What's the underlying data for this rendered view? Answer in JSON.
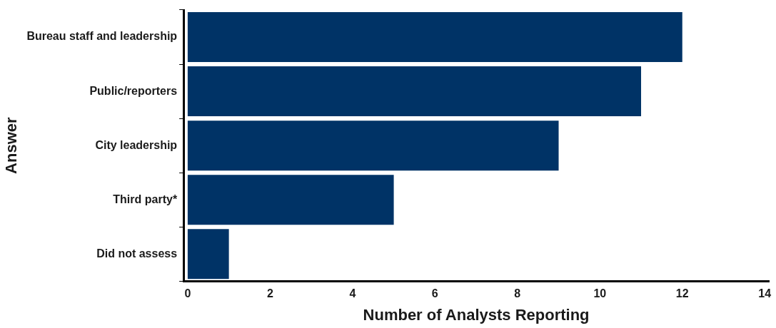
{
  "chart_data": {
    "type": "bar",
    "orientation": "horizontal",
    "xlabel": "Number of Analysts Reporting",
    "ylabel": "Answer",
    "categories": [
      "Bureau staff and leadership",
      "Public/reporters",
      "City leadership",
      "Third party*",
      "Did not assess"
    ],
    "values": [
      12,
      11,
      9,
      5,
      1
    ],
    "color": "#003366",
    "xlim": [
      -0.1,
      14.1
    ],
    "xticks": [
      0,
      2,
      4,
      6,
      8,
      10,
      12,
      14
    ],
    "grid": false,
    "legend": false
  }
}
